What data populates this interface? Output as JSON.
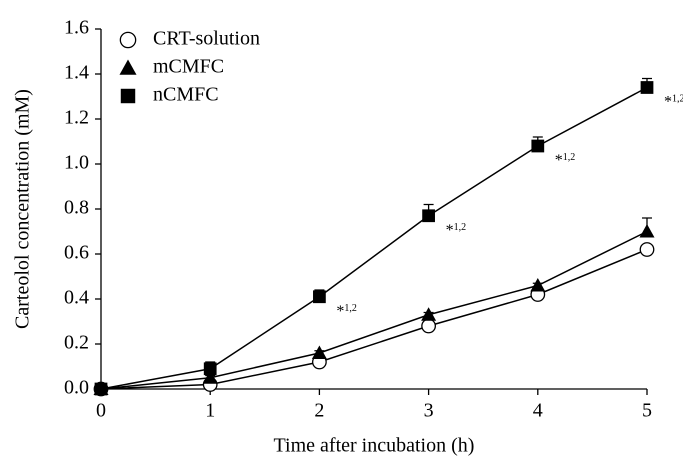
{
  "chart_data": {
    "type": "line",
    "x_label": "Time after incubation (h)",
    "y_label": "Carteolol concentration (mM)",
    "x": [
      0,
      1,
      2,
      3,
      4,
      5
    ],
    "xlim": [
      0,
      5
    ],
    "xticks": [
      0,
      1,
      2,
      3,
      4,
      5
    ],
    "ylim": [
      0,
      1.6
    ],
    "yticks": [
      {
        "value": 0,
        "label": "0.0"
      },
      0.2,
      0.4,
      0.6,
      0.8,
      {
        "value": 1,
        "label": "1.0"
      },
      1.2,
      1.4,
      1.6
    ],
    "legend": "top-left",
    "series": [
      {
        "name": "CRT-solution",
        "color": "#000000",
        "marker": "open-circle",
        "values": [
          0,
          0.02,
          0.12,
          0.28,
          0.42,
          0.62
        ],
        "errors": [
          0.01,
          0.01,
          0.01,
          0.01,
          0.01,
          0.01
        ]
      },
      {
        "name": "mCMFC",
        "color": "#000000",
        "marker": "triangle",
        "values": [
          0,
          0.05,
          0.16,
          0.33,
          0.46,
          0.7
        ],
        "errors": [
          0.01,
          0.01,
          0.01,
          0.01,
          0.01,
          0.06
        ]
      },
      {
        "name": "nCMFC",
        "color": "#000000",
        "marker": "square",
        "values": [
          0,
          0.09,
          0.41,
          0.77,
          1.08,
          1.34
        ],
        "errors": [
          0.01,
          0.03,
          0.03,
          0.05,
          0.04,
          0.04
        ]
      }
    ],
    "annotations": [
      {
        "x": 2,
        "text": "*",
        "sup": "1,2"
      },
      {
        "x": 3,
        "text": "*",
        "sup": "1,2"
      },
      {
        "x": 4,
        "text": "*",
        "sup": "1,2"
      },
      {
        "x": 5,
        "text": "*",
        "sup": "1,2"
      }
    ]
  }
}
